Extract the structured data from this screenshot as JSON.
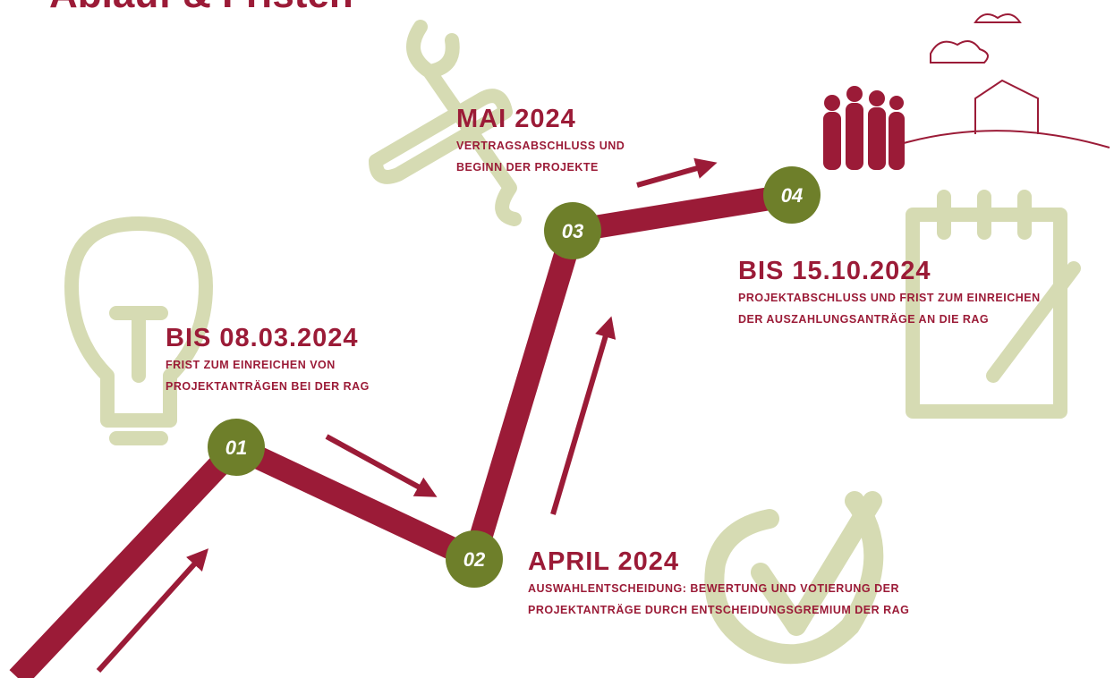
{
  "header": {
    "title": "Ablauf & Fristen"
  },
  "milestones": [
    {
      "number": "01",
      "heading": "BIS 08.03.2024",
      "lines": [
        "FRIST ZUM EINREICHEN VON",
        "PROJEKTANTRÄGEN BEI DER RAG"
      ]
    },
    {
      "number": "02",
      "heading": "APRIL 2024",
      "lines": [
        "AUSWAHLENTSCHEIDUNG: BEWERTUNG UND VOTIERUNG DER",
        "PROJEKTANTRÄGE DURCH ENTSCHEIDUNGSGREMIUM DER RAG"
      ]
    },
    {
      "number": "03",
      "heading": "MAI 2024",
      "lines": [
        "VERTRAGSABSCHLUSS UND",
        "BEGINN DER PROJEKTE"
      ]
    },
    {
      "number": "04",
      "heading": "BIS 15.10.2024",
      "lines": [
        "PROJEKTABSCHLUSS UND FRIST ZUM EINREICHEN",
        "DER AUSZAHLUNGSANTRÄGE AN DIE RAG"
      ]
    }
  ]
}
